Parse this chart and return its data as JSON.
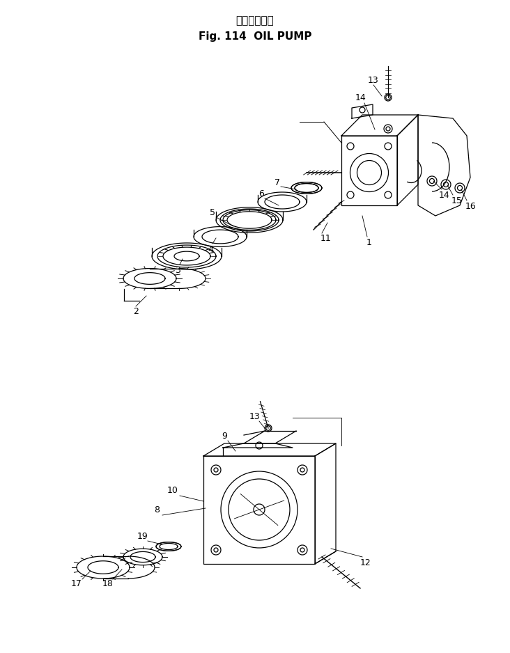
{
  "title_japanese": "オイルポンプ",
  "title_english": "Fig. 114  OIL PUMP",
  "bg_color": "#ffffff",
  "line_color": "#000000",
  "fig_width": 7.32,
  "fig_height": 9.38,
  "dpi": 100,
  "lw": 0.9,
  "fs": 9
}
